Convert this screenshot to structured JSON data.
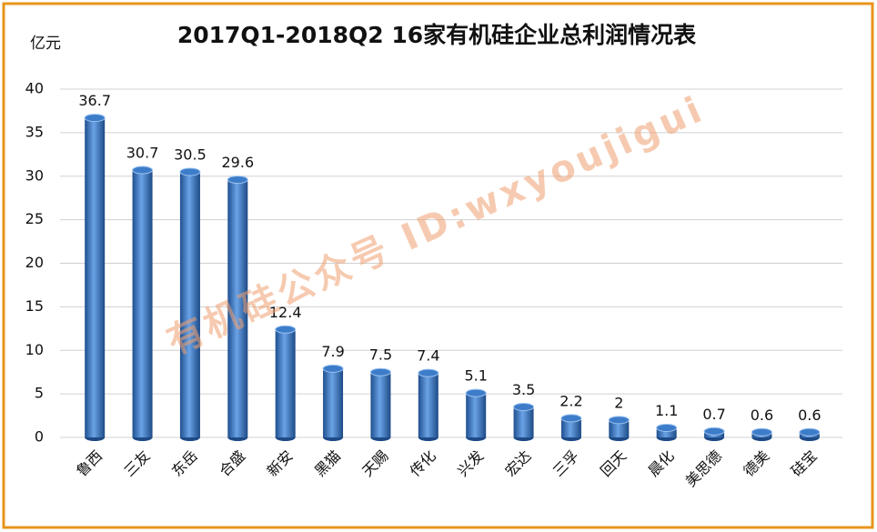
{
  "chart_data": {
    "type": "bar",
    "title": "2017Q1-2018Q2   16家有机硅企业总利润情况表",
    "y_label": "亿元",
    "watermark": "有机硅公众号  ID:wxyoujigui",
    "categories": [
      "鲁西",
      "三友",
      "东岳",
      "合盛",
      "新安",
      "黑猫",
      "天赐",
      "传化",
      "兴发",
      "宏达",
      "三孚",
      "回天",
      "晨化",
      "美思德",
      "德美",
      "硅宝"
    ],
    "values": [
      36.7,
      30.7,
      30.5,
      29.6,
      12.4,
      7.9,
      7.5,
      7.4,
      5.1,
      3.5,
      2.2,
      2,
      1.1,
      0.7,
      0.6,
      0.6
    ],
    "color": "#3d7cc9",
    "ylim": [
      0,
      40
    ],
    "yticks": [
      0,
      5,
      10,
      15,
      20,
      25,
      30,
      35,
      40
    ],
    "grid": true
  }
}
